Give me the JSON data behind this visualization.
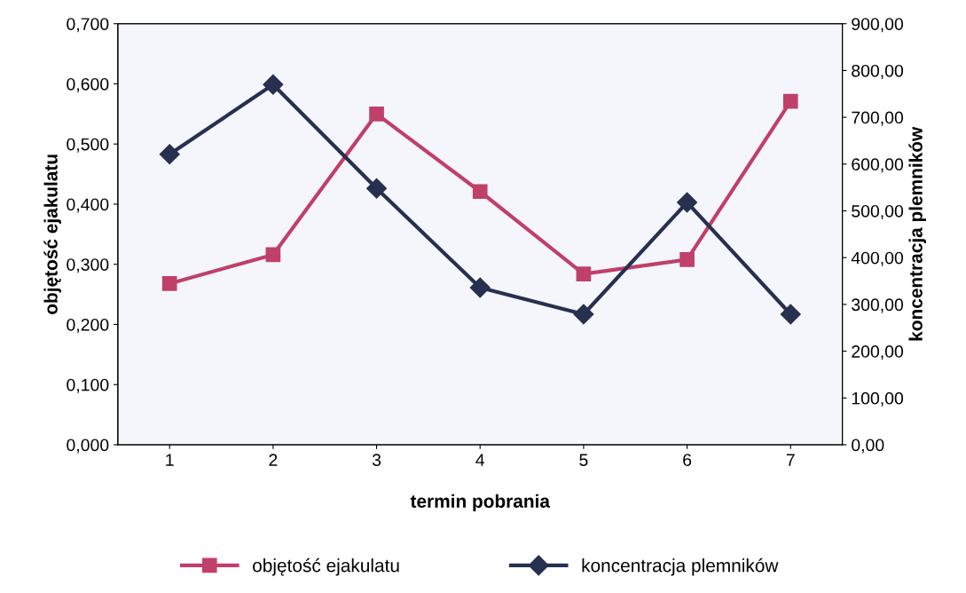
{
  "chart_data": {
    "type": "line",
    "xlabel": "termin pobrania",
    "ylabel": "objętość ejakulatu",
    "y2label": "koncentracja plemników",
    "categories": [
      "1",
      "2",
      "3",
      "4",
      "5",
      "6",
      "7"
    ],
    "series": [
      {
        "name": "objętość ejakulatu",
        "color": "#c0406a",
        "marker": "square",
        "values": [
          0.268,
          0.316,
          0.55,
          0.421,
          0.284,
          0.308,
          0.571
        ]
      },
      {
        "name": "koncentracja plemników",
        "color": "#283050",
        "marker": "diamond",
        "axis": "y2",
        "values": [
          621,
          770,
          548,
          336,
          279,
          518,
          279
        ]
      }
    ],
    "ylim": [
      0,
      0.7
    ],
    "yticks": [
      {
        "value": 0,
        "label": "0,000"
      },
      {
        "value": 0.1,
        "label": "0,100"
      },
      {
        "value": 0.2,
        "label": "0,200"
      },
      {
        "value": 0.3,
        "label": "0,300"
      },
      {
        "value": 0.4,
        "label": "0,400"
      },
      {
        "value": 0.5,
        "label": "0,500"
      },
      {
        "value": 0.6,
        "label": "0,600"
      },
      {
        "value": 0.7,
        "label": "0,700"
      }
    ],
    "y2lim": [
      0,
      900
    ],
    "y2ticks": [
      {
        "value": 0,
        "label": "0,00"
      },
      {
        "value": 100,
        "label": "100,00"
      },
      {
        "value": 200,
        "label": "200,00"
      },
      {
        "value": 300,
        "label": "300,00"
      },
      {
        "value": 400,
        "label": "400,00"
      },
      {
        "value": 500,
        "label": "500,00"
      },
      {
        "value": 600,
        "label": "600,00"
      },
      {
        "value": 700,
        "label": "700,00"
      },
      {
        "value": 800,
        "label": "800,00"
      },
      {
        "value": 900,
        "label": "900,00"
      }
    ],
    "grid": false,
    "legend": "bottom",
    "line_style": "solid"
  }
}
